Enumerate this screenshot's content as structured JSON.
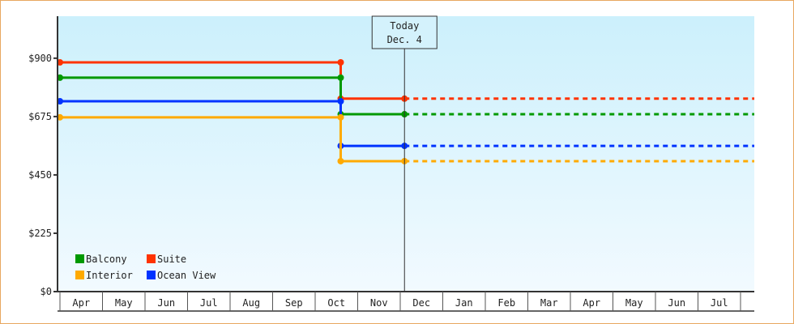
{
  "chart_data": {
    "type": "line",
    "step": true,
    "yticks": [
      "$0",
      "$225",
      "$450",
      "$675",
      "$900"
    ],
    "ytick_values": [
      0,
      225,
      450,
      675,
      900
    ],
    "ylim": [
      0,
      1062
    ],
    "x_ticks": [
      "Apr",
      "May",
      "Jun",
      "Jul",
      "Aug",
      "Sep",
      "Oct",
      "Nov",
      "Dec",
      "Jan",
      "Feb",
      "Mar",
      "Apr",
      "May",
      "Jun",
      "Jul"
    ],
    "today": {
      "line1": "Today",
      "line2": "Dec. 4",
      "date": "Dec 4"
    },
    "change_date": "Oct 19",
    "start_date": "Apr 1",
    "series": [
      {
        "name": "Suite",
        "color": "#ff3300",
        "before": 884,
        "after": 744
      },
      {
        "name": "Balcony",
        "color": "#009900",
        "before": 825,
        "after": 684
      },
      {
        "name": "Ocean View",
        "color": "#0033ff",
        "before": 734,
        "after": 562
      },
      {
        "name": "Interior",
        "color": "#ffaa00",
        "before": 672,
        "after": 503
      }
    ],
    "projection": "dotted after today",
    "background": [
      "#ccf0fc",
      "#f2faff"
    ],
    "legend": {
      "placement": "bottom-left",
      "order": [
        "Balcony",
        "Suite",
        "Interior",
        "Ocean View"
      ]
    }
  }
}
